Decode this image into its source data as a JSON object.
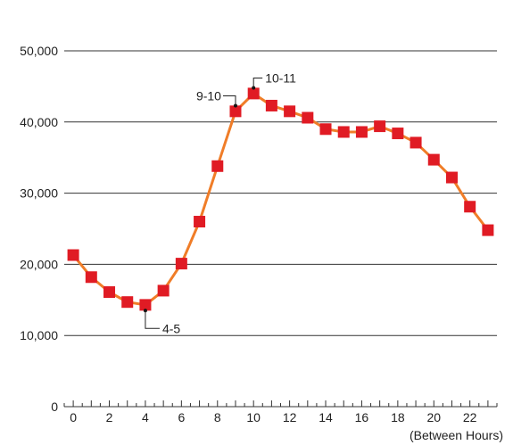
{
  "chart_data": {
    "type": "line",
    "title": "",
    "xlabel": "(Between Hours)",
    "ylabel": "",
    "x": [
      0,
      1,
      2,
      3,
      4,
      5,
      6,
      7,
      8,
      9,
      10,
      11,
      12,
      13,
      14,
      15,
      16,
      17,
      18,
      19,
      20,
      21,
      22,
      23
    ],
    "series": [
      {
        "values": [
          21300,
          18200,
          16100,
          14700,
          14300,
          16300,
          20100,
          26000,
          33800,
          41500,
          44000,
          42300,
          41500,
          40600,
          39000,
          38600,
          38600,
          39400,
          38400,
          37100,
          34700,
          32200,
          28100,
          24800
        ]
      }
    ],
    "xlim": [
      -0.5,
      23.5
    ],
    "ylim": [
      0,
      50000
    ],
    "yticks": [
      0,
      10000,
      20000,
      30000,
      40000,
      50000
    ],
    "ytick_labels": [
      "0",
      "10,000",
      "20,000",
      "30,000",
      "40,000",
      "50,000"
    ],
    "xticks": [
      0,
      2,
      4,
      6,
      8,
      10,
      12,
      14,
      16,
      18,
      20,
      22
    ],
    "xtick_labels": [
      "0",
      "2",
      "4",
      "6",
      "8",
      "10",
      "12",
      "14",
      "16",
      "18",
      "20",
      "22"
    ],
    "grid": true,
    "annotations": [
      {
        "label": "4-5",
        "x": 4,
        "y": 13500
      },
      {
        "label": "9-10",
        "x": 9,
        "y": 42300
      },
      {
        "label": "10-11",
        "x": 10,
        "y": 44800
      }
    ],
    "colors": {
      "line": "#f07d28",
      "marker": "#e01b24",
      "grid": "#333333",
      "text": "#222222"
    }
  }
}
